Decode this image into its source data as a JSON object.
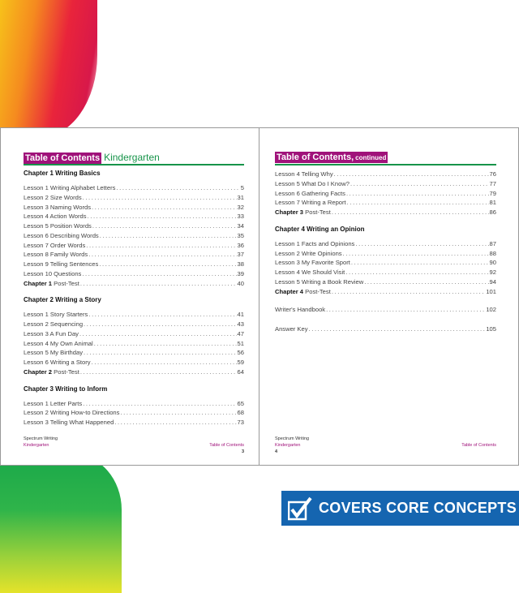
{
  "left_page": {
    "title": "Table of Contents",
    "subtitle": "Kindergarten",
    "sections": [
      {
        "heading": "Chapter 1 Writing Basics",
        "entries": [
          {
            "label": "Lesson 1 Writing Alphabet Letters",
            "page": "5"
          },
          {
            "label": "Lesson 2 Size Words",
            "page": "31"
          },
          {
            "label": "Lesson 3 Naming Words",
            "page": "32"
          },
          {
            "label": "Lesson 4 Action Words",
            "page": "33"
          },
          {
            "label": "Lesson 5 Position Words",
            "page": "34"
          },
          {
            "label": "Lesson 6 Describing Words",
            "page": "35"
          },
          {
            "label": "Lesson 7 Order Words",
            "page": "36"
          },
          {
            "label": "Lesson 8 Family Words",
            "page": "37"
          },
          {
            "label": "Lesson 9 Telling Sentences",
            "page": "38"
          },
          {
            "label": "Lesson 10 Questions",
            "page": "39"
          },
          {
            "bold": "Chapter 1",
            "label": "Post-Test",
            "page": "40"
          }
        ]
      },
      {
        "heading": "Chapter 2 Writing a Story",
        "entries": [
          {
            "label": "Lesson 1 Story Starters",
            "page": "41"
          },
          {
            "label": "Lesson 2 Sequencing",
            "page": "43"
          },
          {
            "label": "Lesson 3 A Fun Day",
            "page": "47"
          },
          {
            "label": "Lesson 4 My Own Animal",
            "page": "51"
          },
          {
            "label": "Lesson 5 My Birthday",
            "page": "56"
          },
          {
            "label": "Lesson 6 Writing a Story",
            "page": "59"
          },
          {
            "bold": "Chapter 2",
            "label": "Post-Test",
            "page": "64"
          }
        ]
      },
      {
        "heading": "Chapter 3 Writing to Inform",
        "entries": [
          {
            "label": "Lesson 1 Letter Parts",
            "page": "65"
          },
          {
            "label": "Lesson 2 Writing How-to Directions",
            "page": "68"
          },
          {
            "label": "Lesson 3 Telling What Happened",
            "page": "73"
          }
        ]
      }
    ],
    "footer": {
      "book": "Spectrum Writing",
      "grade": "Kindergarten",
      "section": "Table of Contents",
      "page_number": "3"
    }
  },
  "right_page": {
    "title": "Table of Contents,",
    "subtitle": "continued",
    "sections": [
      {
        "heading": "",
        "entries": [
          {
            "label": "Lesson 4 Telling Why",
            "page": "76"
          },
          {
            "label": "Lesson 5 What Do I Know?",
            "page": "77"
          },
          {
            "label": "Lesson 6 Gathering Facts",
            "page": "79"
          },
          {
            "label": "Lesson 7 Writing a Report",
            "page": "81"
          },
          {
            "bold": "Chapter 3",
            "label": "Post-Test",
            "page": "86"
          }
        ]
      },
      {
        "heading": "Chapter 4 Writing an Opinion",
        "entries": [
          {
            "label": "Lesson 1 Facts and Opinions",
            "page": "87"
          },
          {
            "label": "Lesson 2 Write Opinions",
            "page": "88"
          },
          {
            "label": "Lesson 3 My Favorite Sport",
            "page": "90"
          },
          {
            "label": "Lesson 4 We Should Visit",
            "page": "92"
          },
          {
            "label": "Lesson 5 Writing a Book Review",
            "page": "94"
          },
          {
            "bold": "Chapter 4",
            "label": "Post-Test",
            "page": "101"
          }
        ]
      },
      {
        "heading": "",
        "entries": [
          {
            "label": "Writer's Handbook",
            "page": "102"
          }
        ]
      },
      {
        "heading": "",
        "entries": [
          {
            "label": "Answer Key",
            "page": "105"
          }
        ]
      }
    ],
    "footer": {
      "book": "Spectrum Writing",
      "grade": "Kindergarten",
      "section": "Table of Contents",
      "page_number": "4"
    }
  },
  "banner": {
    "text": "COVERS CORE CONCEPTS",
    "icon": "checkbox-check-icon"
  },
  "colors": {
    "magenta": "#a0127a",
    "green": "#17944a",
    "blue": "#1565b0"
  }
}
